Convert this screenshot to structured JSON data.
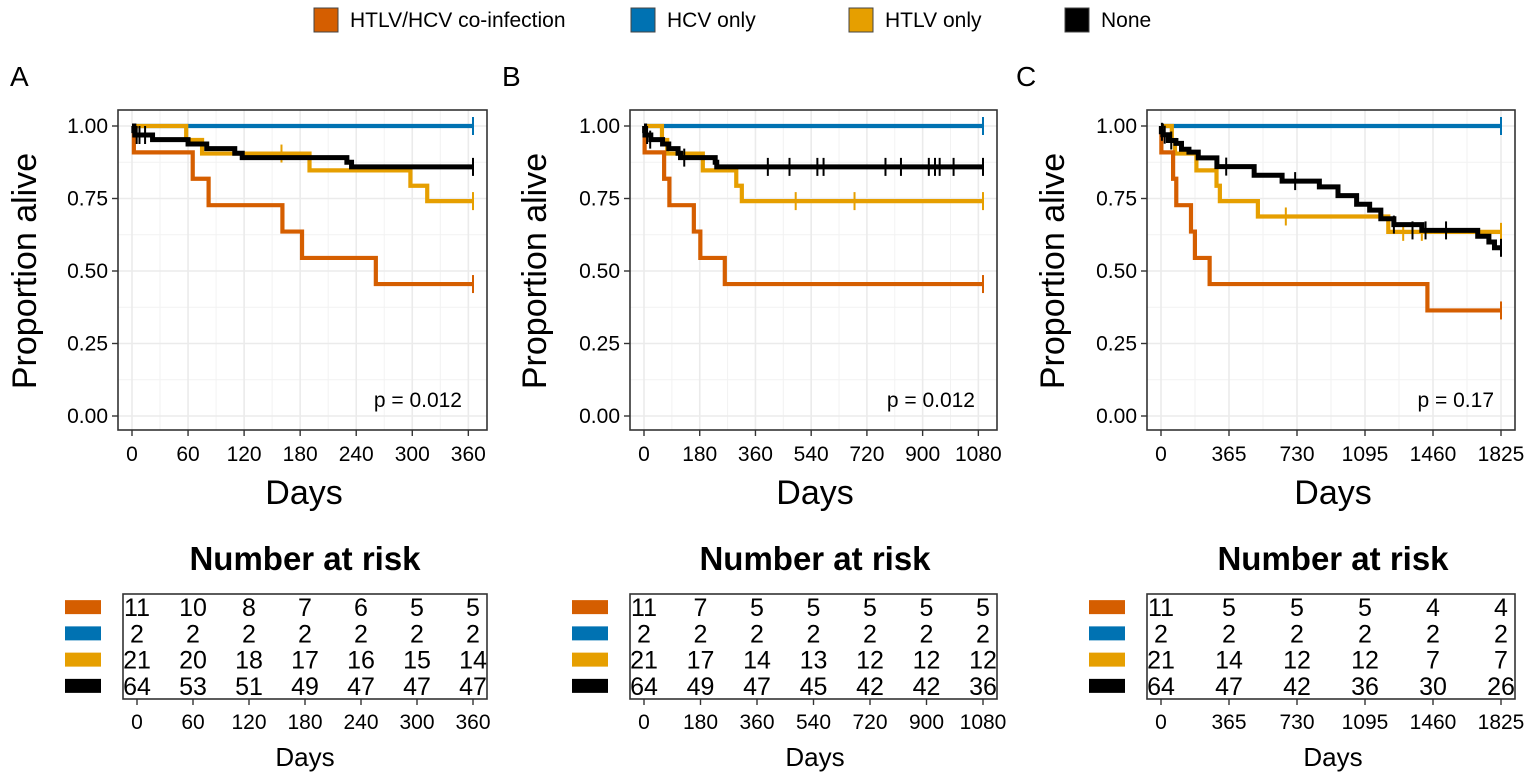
{
  "legend": {
    "items": [
      {
        "label": "HTLV/HCV co-infection",
        "color": "#D55E00"
      },
      {
        "label": "HCV only",
        "color": "#0072B2"
      },
      {
        "label": "HTLV only",
        "color": "#E69F00"
      },
      {
        "label": "None",
        "color": "#000000"
      }
    ]
  },
  "chart_data": [
    {
      "type": "line",
      "panel": "A",
      "title": "",
      "xlabel": "Days",
      "ylabel": "Proportion alive",
      "xlim": [
        0,
        365
      ],
      "ylim": [
        0,
        1
      ],
      "x_ticks": [
        0,
        60,
        120,
        180,
        240,
        300,
        360
      ],
      "x_tick_labels": [
        "0",
        "60",
        "120",
        "180",
        "240",
        "300",
        "360"
      ],
      "y_ticks": [
        0,
        0.25,
        0.5,
        0.75,
        1
      ],
      "y_tick_labels": [
        "0.00",
        "0.25",
        "0.50",
        "0.75",
        "1.00"
      ],
      "x_minor": [
        30,
        90,
        150,
        210,
        270,
        330
      ],
      "pvalue": "p = 0.012",
      "series": [
        {
          "name": "HTLV/HCV co-infection",
          "color": "#D55E00",
          "x": [
            0,
            2,
            65,
            82,
            161,
            182,
            261,
            365
          ],
          "y": [
            1,
            0.909,
            0.818,
            0.727,
            0.636,
            0.545,
            0.455,
            0.455
          ],
          "censor_x": [
            365
          ],
          "censor_y": [
            0.455
          ]
        },
        {
          "name": "HCV only",
          "color": "#0072B2",
          "x": [
            0,
            365
          ],
          "y": [
            1,
            1
          ],
          "censor_x": [
            365
          ],
          "censor_y": [
            1
          ]
        },
        {
          "name": "HTLV only",
          "color": "#E69F00",
          "x": [
            0,
            58,
            75,
            190,
            298,
            316,
            365
          ],
          "y": [
            1,
            0.952,
            0.905,
            0.847,
            0.794,
            0.741,
            0.741
          ],
          "censor_x": [
            160,
            365
          ],
          "censor_y": [
            0.905,
            0.741
          ]
        },
        {
          "name": "None",
          "color": "#000000",
          "x": [
            0,
            2,
            3,
            22,
            60,
            80,
            110,
            118,
            230,
            235,
            365
          ],
          "y": [
            1,
            0.984,
            0.969,
            0.953,
            0.938,
            0.922,
            0.906,
            0.891,
            0.875,
            0.859,
            0.859
          ],
          "censor_x": [
            5,
            8,
            14,
            365
          ],
          "censor_y": [
            0.969,
            0.969,
            0.969,
            0.859
          ]
        }
      ],
      "risk_table": {
        "title": "Number at risk",
        "xlabel": "Days",
        "x": [
          "0",
          "60",
          "120",
          "180",
          "240",
          "300",
          "360"
        ],
        "rows": [
          {
            "color": "#D55E00",
            "values": [
              "11",
              "10",
              "8",
              "7",
              "6",
              "5",
              "5"
            ]
          },
          {
            "color": "#0072B2",
            "values": [
              "2",
              "2",
              "2",
              "2",
              "2",
              "2",
              "2"
            ]
          },
          {
            "color": "#E69F00",
            "values": [
              "21",
              "20",
              "18",
              "17",
              "16",
              "15",
              "14"
            ]
          },
          {
            "color": "#000000",
            "values": [
              "64",
              "53",
              "51",
              "49",
              "47",
              "47",
              "47"
            ]
          }
        ]
      }
    },
    {
      "type": "line",
      "panel": "B",
      "title": "",
      "xlabel": "Days",
      "ylabel": "Proportion alive",
      "xlim": [
        0,
        1095
      ],
      "ylim": [
        0,
        1
      ],
      "x_ticks": [
        0,
        180,
        360,
        540,
        720,
        900,
        1080
      ],
      "x_tick_labels": [
        "0",
        "180",
        "360",
        "540",
        "720",
        "900",
        "1080"
      ],
      "y_ticks": [
        0,
        0.25,
        0.5,
        0.75,
        1
      ],
      "y_tick_labels": [
        "0.00",
        "0.25",
        "0.50",
        "0.75",
        "1.00"
      ],
      "x_minor": [
        90,
        270,
        450,
        630,
        810,
        990
      ],
      "pvalue": "p = 0.012",
      "series": [
        {
          "name": "HTLV/HCV co-infection",
          "color": "#D55E00",
          "x": [
            0,
            2,
            65,
            82,
            161,
            182,
            261,
            1095
          ],
          "y": [
            1,
            0.909,
            0.818,
            0.727,
            0.636,
            0.545,
            0.455,
            0.455
          ],
          "censor_x": [
            1095
          ],
          "censor_y": [
            0.455
          ]
        },
        {
          "name": "HCV only",
          "color": "#0072B2",
          "x": [
            0,
            1095
          ],
          "y": [
            1,
            1
          ],
          "censor_x": [
            1095
          ],
          "censor_y": [
            1
          ]
        },
        {
          "name": "HTLV only",
          "color": "#E69F00",
          "x": [
            0,
            58,
            75,
            190,
            298,
            316,
            1095
          ],
          "y": [
            1,
            0.952,
            0.905,
            0.847,
            0.794,
            0.741,
            0.741
          ],
          "censor_x": [
            490,
            680,
            1095
          ],
          "censor_y": [
            0.741,
            0.741,
            0.741
          ]
        },
        {
          "name": "None",
          "color": "#000000",
          "x": [
            0,
            2,
            3,
            22,
            60,
            80,
            110,
            118,
            230,
            235,
            1095
          ],
          "y": [
            1,
            0.984,
            0.969,
            0.953,
            0.938,
            0.922,
            0.906,
            0.891,
            0.875,
            0.859,
            0.859
          ],
          "censor_x": [
            10,
            20,
            130,
            400,
            470,
            560,
            580,
            780,
            830,
            920,
            940,
            955,
            1000,
            1095
          ],
          "censor_y": [
            0.969,
            0.953,
            0.891,
            0.859,
            0.859,
            0.859,
            0.859,
            0.859,
            0.859,
            0.859,
            0.859,
            0.859,
            0.859,
            0.859
          ]
        }
      ],
      "risk_table": {
        "title": "Number at risk",
        "xlabel": "Days",
        "x": [
          "0",
          "180",
          "360",
          "540",
          "720",
          "900",
          "1080"
        ],
        "rows": [
          {
            "color": "#D55E00",
            "values": [
              "11",
              "7",
              "5",
              "5",
              "5",
              "5",
              "5"
            ]
          },
          {
            "color": "#0072B2",
            "values": [
              "2",
              "2",
              "2",
              "2",
              "2",
              "2",
              "2"
            ]
          },
          {
            "color": "#E69F00",
            "values": [
              "21",
              "17",
              "14",
              "13",
              "12",
              "12",
              "12"
            ]
          },
          {
            "color": "#000000",
            "values": [
              "64",
              "49",
              "47",
              "45",
              "42",
              "42",
              "36"
            ]
          }
        ]
      }
    },
    {
      "type": "line",
      "panel": "C",
      "title": "",
      "xlabel": "Days",
      "ylabel": "Proportion alive",
      "xlim": [
        0,
        1825
      ],
      "ylim": [
        0,
        1
      ],
      "x_ticks": [
        0,
        365,
        730,
        1095,
        1460,
        1825
      ],
      "x_tick_labels": [
        "0",
        "365",
        "730",
        "1095",
        "1460",
        "1825"
      ],
      "y_ticks": [
        0,
        0.25,
        0.5,
        0.75,
        1
      ],
      "y_tick_labels": [
        "0.00",
        "0.25",
        "0.50",
        "0.75",
        "1.00"
      ],
      "x_minor": [
        182.5,
        547.5,
        912.5,
        1277.5,
        1642.5
      ],
      "pvalue": "p = 0.17",
      "series": [
        {
          "name": "HTLV/HCV co-infection",
          "color": "#D55E00",
          "x": [
            0,
            2,
            65,
            82,
            161,
            182,
            261,
            1430,
            1825
          ],
          "y": [
            1,
            0.909,
            0.818,
            0.727,
            0.636,
            0.545,
            0.455,
            0.364,
            0.364
          ],
          "censor_x": [
            1825
          ],
          "censor_y": [
            0.364
          ]
        },
        {
          "name": "HCV only",
          "color": "#0072B2",
          "x": [
            0,
            1825
          ],
          "y": [
            1,
            1
          ],
          "censor_x": [
            1825
          ],
          "censor_y": [
            1
          ]
        },
        {
          "name": "HTLV only",
          "color": "#E69F00",
          "x": [
            0,
            58,
            75,
            190,
            298,
            316,
            520,
            1090,
            1110,
            1220,
            1825
          ],
          "y": [
            1,
            0.952,
            0.905,
            0.847,
            0.794,
            0.741,
            0.688,
            0.688,
            0.688,
            0.635,
            0.635
          ],
          "censor_x": [
            670,
            1300,
            1400,
            1825
          ],
          "censor_y": [
            0.688,
            0.635,
            0.635,
            0.635
          ]
        },
        {
          "name": "None",
          "color": "#000000",
          "x": [
            0,
            2,
            10,
            40,
            80,
            110,
            150,
            200,
            300,
            500,
            650,
            850,
            950,
            1050,
            1120,
            1180,
            1250,
            1400,
            1700,
            1760,
            1790,
            1825
          ],
          "y": [
            1,
            0.98,
            0.97,
            0.95,
            0.94,
            0.92,
            0.91,
            0.89,
            0.86,
            0.83,
            0.81,
            0.79,
            0.76,
            0.73,
            0.71,
            0.68,
            0.66,
            0.64,
            0.62,
            0.6,
            0.58,
            0.58
          ],
          "censor_x": [
            5,
            20,
            55,
            350,
            720,
            1250,
            1350,
            1420,
            1530,
            1825
          ],
          "censor_y": [
            0.98,
            0.97,
            0.95,
            0.86,
            0.81,
            0.66,
            0.64,
            0.64,
            0.64,
            0.58
          ]
        }
      ],
      "risk_table": {
        "title": "Number at risk",
        "xlabel": "Days",
        "x": [
          "0",
          "365",
          "730",
          "1095",
          "1460",
          "1825"
        ],
        "rows": [
          {
            "color": "#D55E00",
            "values": [
              "11",
              "5",
              "5",
              "5",
              "4",
              "4"
            ]
          },
          {
            "color": "#0072B2",
            "values": [
              "2",
              "2",
              "2",
              "2",
              "2",
              "2"
            ]
          },
          {
            "color": "#E69F00",
            "values": [
              "21",
              "14",
              "12",
              "12",
              "7",
              "7"
            ]
          },
          {
            "color": "#000000",
            "values": [
              "64",
              "47",
              "42",
              "36",
              "30",
              "26"
            ]
          }
        ]
      }
    }
  ]
}
